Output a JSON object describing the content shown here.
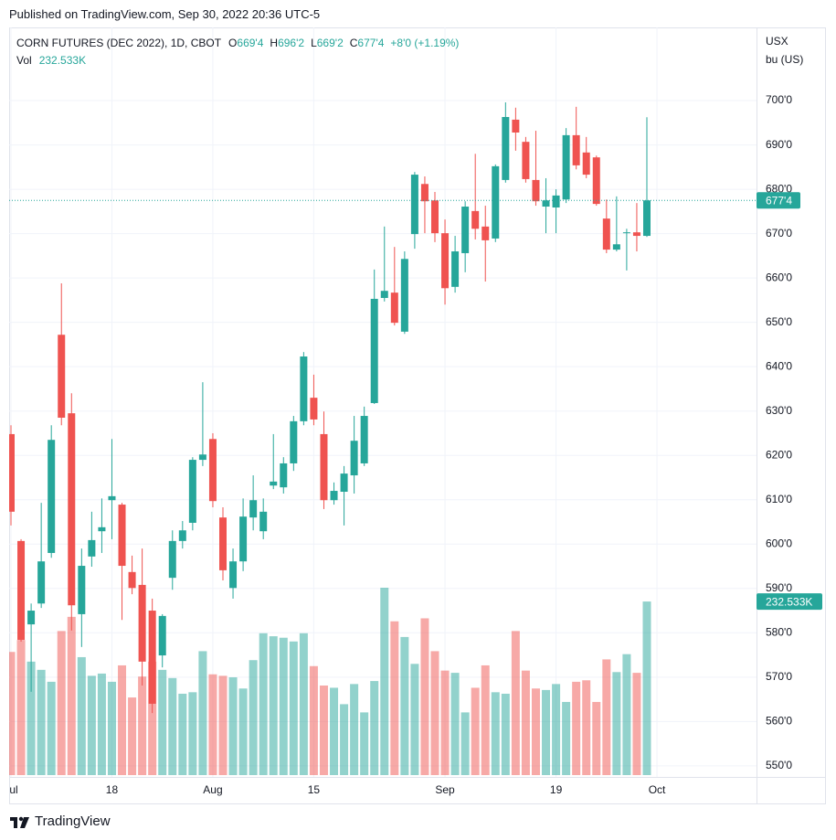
{
  "header": {
    "published": "Published on TradingView.com, Sep 30, 2022 20:36 UTC-5"
  },
  "footer": {
    "brand": "TradingView"
  },
  "chart_data": {
    "type": "candlestick",
    "title": "CORN FUTURES (DEC 2022), 1D, CBOT",
    "ohlc_legend": [
      {
        "key": "O",
        "value": "669'4"
      },
      {
        "key": "H",
        "value": "696'2"
      },
      {
        "key": "L",
        "value": "669'2"
      },
      {
        "key": "C",
        "value": "677'4"
      }
    ],
    "change": "+8'0 (+1.19%)",
    "volume_title": "Vol",
    "currency": "USX",
    "unit": "bu (US)",
    "up_color": "#26a69a",
    "down_color": "#ef5350",
    "grid": true,
    "x": [
      "2022-07-01",
      "2022-07-05",
      "2022-07-06",
      "2022-07-07",
      "2022-07-08",
      "2022-07-11",
      "2022-07-12",
      "2022-07-13",
      "2022-07-14",
      "2022-07-15",
      "2022-07-18",
      "2022-07-19",
      "2022-07-20",
      "2022-07-21",
      "2022-07-22",
      "2022-07-25",
      "2022-07-26",
      "2022-07-27",
      "2022-07-28",
      "2022-07-29",
      "2022-08-01",
      "2022-08-02",
      "2022-08-03",
      "2022-08-04",
      "2022-08-05",
      "2022-08-08",
      "2022-08-09",
      "2022-08-10",
      "2022-08-11",
      "2022-08-12",
      "2022-08-15",
      "2022-08-16",
      "2022-08-17",
      "2022-08-18",
      "2022-08-19",
      "2022-08-22",
      "2022-08-23",
      "2022-08-24",
      "2022-08-25",
      "2022-08-26",
      "2022-08-29",
      "2022-08-30",
      "2022-08-31",
      "2022-09-01",
      "2022-09-02",
      "2022-09-06",
      "2022-09-07",
      "2022-09-08",
      "2022-09-09",
      "2022-09-12",
      "2022-09-13",
      "2022-09-14",
      "2022-09-15",
      "2022-09-16",
      "2022-09-19",
      "2022-09-20",
      "2022-09-21",
      "2022-09-22",
      "2022-09-23",
      "2022-09-26",
      "2022-09-27",
      "2022-09-28",
      "2022-09-29",
      "2022-09-30"
    ],
    "open": [
      624.8,
      600.7,
      581.9,
      586.6,
      598.0,
      647.2,
      629.5,
      584.2,
      597.2,
      602.9,
      609.9,
      608.9,
      593.7,
      590.8,
      585.0,
      574.9,
      592.4,
      600.7,
      604.8,
      619.0,
      623.7,
      606.0,
      590.1,
      596.1,
      606.0,
      602.9,
      613.2,
      612.8,
      618.2,
      627.7,
      633.0,
      624.8,
      609.9,
      611.8,
      615.5,
      618.2,
      631.8,
      655.5,
      656.7,
      647.9,
      669.9,
      681.2,
      677.5,
      670.1,
      658.0,
      665.6,
      675.1,
      671.6,
      668.9,
      682.1,
      695.7,
      690.7,
      682.1,
      676.1,
      675.9,
      677.7,
      692.2,
      688.3,
      687.2,
      673.4,
      666.4,
      670.1,
      670.3,
      669.5
    ],
    "high": [
      626.8,
      601.1,
      586.6,
      609.3,
      626.8,
      658.8,
      634.0,
      599.0,
      607.3,
      610.3,
      623.7,
      609.3,
      597.4,
      599.0,
      587.7,
      584.2,
      603.1,
      605.2,
      619.6,
      636.5,
      625.0,
      608.3,
      599.0,
      610.3,
      615.5,
      610.3,
      624.8,
      619.6,
      628.9,
      643.3,
      638.2,
      629.9,
      613.9,
      617.6,
      628.9,
      631.0,
      661.9,
      671.6,
      667.0,
      666.0,
      683.9,
      682.9,
      679.4,
      673.2,
      669.5,
      677.3,
      688.0,
      676.3,
      685.6,
      699.6,
      698.4,
      691.8,
      693.2,
      682.5,
      680.0,
      693.8,
      698.6,
      691.8,
      687.6,
      677.7,
      678.4,
      671.1,
      676.9,
      696.25
    ],
    "low": [
      604.2,
      578.0,
      566.7,
      585.6,
      596.9,
      626.8,
      580.5,
      576.8,
      594.9,
      598.0,
      601.1,
      582.9,
      588.7,
      568.1,
      561.9,
      572.2,
      589.7,
      599.0,
      603.1,
      617.6,
      608.3,
      591.8,
      587.7,
      593.9,
      603.1,
      601.1,
      612.4,
      611.4,
      616.5,
      626.8,
      626.8,
      607.9,
      608.9,
      604.2,
      611.4,
      617.6,
      631.6,
      654.7,
      649.3,
      647.4,
      666.6,
      670.1,
      668.1,
      654.0,
      656.7,
      661.3,
      668.7,
      659.2,
      668.1,
      681.5,
      688.7,
      681.5,
      676.3,
      670.1,
      670.1,
      676.9,
      684.5,
      682.5,
      676.3,
      665.6,
      666.0,
      661.7,
      666.0,
      669.25
    ],
    "close": [
      607.3,
      578.4,
      585.0,
      596.1,
      623.5,
      628.5,
      586.2,
      595.1,
      600.9,
      603.8,
      610.8,
      595.1,
      590.1,
      573.5,
      564.0,
      583.8,
      600.7,
      603.1,
      619.0,
      620.2,
      609.7,
      594.1,
      596.1,
      606.2,
      609.9,
      607.3,
      614.1,
      618.2,
      627.7,
      642.3,
      628.1,
      609.9,
      612.0,
      615.9,
      623.3,
      628.9,
      655.3,
      657.1,
      649.9,
      664.3,
      683.3,
      677.3,
      670.1,
      657.7,
      666.0,
      676.1,
      671.1,
      668.5,
      685.2,
      696.3,
      692.8,
      682.3,
      677.3,
      677.5,
      678.6,
      692.2,
      685.4,
      683.3,
      676.7,
      666.4,
      667.6,
      670.3,
      669.5,
      677.5
    ],
    "volume": {
      "values": [
        165,
        181,
        152,
        141,
        125,
        193,
        212,
        158,
        133,
        136,
        125,
        147,
        104,
        132,
        152,
        141,
        130,
        109,
        111,
        166,
        135,
        133,
        131,
        116,
        154,
        190,
        186,
        184,
        179,
        190,
        146,
        120,
        117,
        95,
        122,
        84,
        126,
        251,
        206,
        185,
        149,
        210,
        166,
        140,
        137,
        84,
        117,
        147,
        111,
        109,
        193,
        140,
        116,
        114,
        122,
        98,
        125,
        127,
        98,
        155,
        138,
        162,
        137,
        232.533
      ],
      "value_labels": [
        null,
        null,
        null,
        null,
        null,
        null,
        null,
        null,
        null,
        null,
        null,
        null,
        null,
        null,
        null,
        null,
        null,
        null,
        null,
        null,
        null,
        null,
        null,
        null,
        null,
        null,
        null,
        null,
        null,
        null,
        null,
        null,
        null,
        null,
        null,
        null,
        null,
        null,
        null,
        null,
        null,
        null,
        null,
        null,
        null,
        null,
        null,
        null,
        null,
        null,
        null,
        null,
        null,
        null,
        null,
        null,
        null,
        null,
        null,
        null,
        null,
        null,
        null,
        "232.533K"
      ]
    },
    "last_price": {
      "value": 677.5,
      "label": "677'4"
    },
    "ylim": [
      547.5,
      716.5
    ],
    "yticks": [
      {
        "value": 550,
        "label": "550'0"
      },
      {
        "value": 560,
        "label": "560'0"
      },
      {
        "value": 570,
        "label": "570'0"
      },
      {
        "value": 580,
        "label": "580'0"
      },
      {
        "value": 590,
        "label": "590'0"
      },
      {
        "value": 600,
        "label": "600'0"
      },
      {
        "value": 610,
        "label": "610'0"
      },
      {
        "value": 620,
        "label": "620'0"
      },
      {
        "value": 630,
        "label": "630'0"
      },
      {
        "value": 640,
        "label": "640'0"
      },
      {
        "value": 650,
        "label": "650'0"
      },
      {
        "value": 660,
        "label": "660'0"
      },
      {
        "value": 670,
        "label": "670'0"
      },
      {
        "value": 680,
        "label": "680'0"
      },
      {
        "value": 690,
        "label": "690'0"
      },
      {
        "value": 700,
        "label": "700'0"
      }
    ],
    "xticks": [
      {
        "value": "2022-07-01",
        "label": "Jul"
      },
      {
        "value": "2022-07-18",
        "label": "18"
      },
      {
        "value": "2022-08-01",
        "label": "Aug"
      },
      {
        "value": "2022-08-15",
        "label": "15"
      },
      {
        "value": "2022-09-01",
        "label": "Sep"
      },
      {
        "value": "2022-09-19",
        "label": "19"
      },
      {
        "value": "2022-10-03",
        "label": "Oct"
      }
    ]
  }
}
